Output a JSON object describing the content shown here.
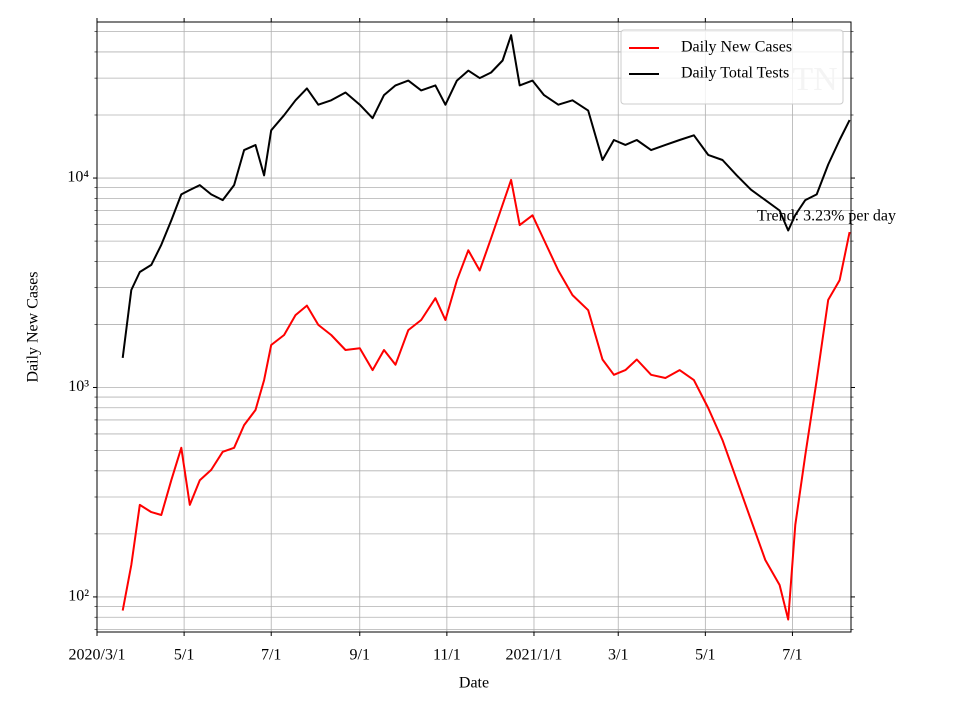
{
  "chart_data": {
    "type": "line",
    "ylabel": "Daily New Cases",
    "xlabel": "Date",
    "annotation": "Trend: 3.23% per day",
    "watermark": "TN",
    "log_y": true,
    "grid": true,
    "legend": "upper right",
    "xlim": [
      "2020-03-01",
      "2021-08-11"
    ],
    "xticks": [
      {
        "value": "2020-03-01",
        "label": "2020/3/1"
      },
      {
        "value": "2020-05-01",
        "label": "5/1"
      },
      {
        "value": "2020-07-01",
        "label": "7/1"
      },
      {
        "value": "2020-09-01",
        "label": "9/1"
      },
      {
        "value": "2020-11-01",
        "label": "11/1"
      },
      {
        "value": "2021-01-01",
        "label": "2021/1/1"
      },
      {
        "value": "2021-03-01",
        "label": "3/1"
      },
      {
        "value": "2021-05-01",
        "label": "5/1"
      },
      {
        "value": "2021-07-01",
        "label": "7/1"
      }
    ],
    "ylim": [
      68,
      55600
    ],
    "yticks": [
      {
        "value": 100,
        "label": "10²"
      },
      {
        "value": 1000,
        "label": "10³"
      },
      {
        "value": 10000,
        "label": "10⁴"
      }
    ],
    "yminorticks": [
      70,
      80,
      90,
      200,
      300,
      400,
      500,
      600,
      700,
      800,
      900,
      2000,
      3000,
      4000,
      5000,
      6000,
      7000,
      8000,
      9000,
      20000,
      30000,
      40000,
      50000
    ],
    "x": [
      "2020-03-19",
      "2020-03-25",
      "2020-03-31",
      "2020-04-08",
      "2020-04-15",
      "2020-04-22",
      "2020-04-29",
      "2020-05-05",
      "2020-05-12",
      "2020-05-20",
      "2020-05-28",
      "2020-06-05",
      "2020-06-12",
      "2020-06-20",
      "2020-06-26",
      "2020-07-01",
      "2020-07-10",
      "2020-07-18",
      "2020-07-26",
      "2020-08-03",
      "2020-08-12",
      "2020-08-22",
      "2020-09-01",
      "2020-09-10",
      "2020-09-18",
      "2020-09-26",
      "2020-10-05",
      "2020-10-14",
      "2020-10-24",
      "2020-10-31",
      "2020-11-08",
      "2020-11-16",
      "2020-11-24",
      "2020-12-02",
      "2020-12-10",
      "2020-12-16",
      "2020-12-22",
      "2020-12-31",
      "2021-01-08",
      "2021-01-18",
      "2021-01-28",
      "2021-02-08",
      "2021-02-18",
      "2021-02-26",
      "2021-03-06",
      "2021-03-14",
      "2021-03-24",
      "2021-04-03",
      "2021-04-13",
      "2021-04-23",
      "2021-05-03",
      "2021-05-13",
      "2021-05-23",
      "2021-06-02",
      "2021-06-12",
      "2021-06-22",
      "2021-06-28",
      "2021-07-03",
      "2021-07-10",
      "2021-07-18",
      "2021-07-26",
      "2021-08-03",
      "2021-08-10"
    ],
    "series": [
      {
        "name": "Daily New Cases",
        "color": "#ff0000",
        "values": [
          86,
          142,
          275,
          254,
          246,
          361,
          515,
          275,
          361,
          404,
          493,
          515,
          661,
          781,
          1085,
          1595,
          1780,
          2215,
          2460,
          1990,
          1780,
          1510,
          1540,
          1210,
          1510,
          1285,
          1880,
          2100,
          2670,
          2100,
          3250,
          4520,
          3620,
          5160,
          7460,
          9800,
          5960,
          6640,
          5060,
          3620,
          2760,
          2340,
          1360,
          1150,
          1210,
          1360,
          1150,
          1110,
          1210,
          1085,
          798,
          561,
          361,
          233,
          150,
          114,
          78,
          221,
          476,
          1085,
          2620,
          3250,
          5520
        ]
      },
      {
        "name": "Daily Total Tests",
        "color": "#000000",
        "values": [
          1384,
          2920,
          3560,
          3850,
          4800,
          6280,
          8350,
          8770,
          9250,
          8350,
          7850,
          9250,
          13600,
          14380,
          10300,
          16900,
          19950,
          23500,
          26800,
          22400,
          23500,
          25600,
          22400,
          19300,
          24900,
          27700,
          29200,
          26200,
          27700,
          22400,
          29200,
          32600,
          30000,
          31900,
          36400,
          48100,
          27700,
          29200,
          24900,
          22400,
          23500,
          21000,
          12200,
          15200,
          14400,
          15200,
          13600,
          14400,
          15200,
          16000,
          12900,
          12200,
          10300,
          8800,
          7850,
          7000,
          5620,
          6660,
          7850,
          8350,
          11600,
          15200,
          18900
        ]
      }
    ]
  }
}
